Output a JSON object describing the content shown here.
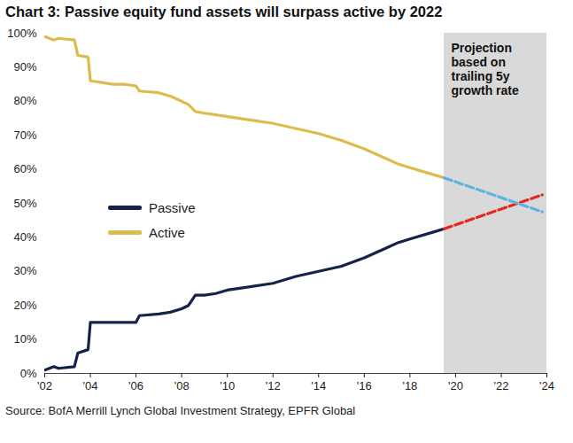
{
  "chart_data": {
    "type": "line",
    "title": "Chart 3: Passive equity fund assets will surpass active by 2022",
    "source": "Source: BofA Merrill Lynch Global Investment Strategy, EPFR Global",
    "x": [
      2002,
      2002.4,
      2002.6,
      2003.3,
      2003.45,
      2003.9,
      2004,
      2004.5,
      2005,
      2005.5,
      2006,
      2006.15,
      2007,
      2007.5,
      2008,
      2008.3,
      2008.6,
      2009,
      2009.5,
      2010,
      2011,
      2012,
      2013,
      2014,
      2015,
      2016,
      2017,
      2017.5,
      2018,
      2019,
      2019.5,
      2023.8
    ],
    "series": [
      {
        "name": "Passive",
        "color": "#15234a",
        "values": [
          1,
          2,
          1.5,
          2,
          6,
          7,
          15,
          15,
          15,
          15,
          15,
          17,
          17.5,
          18,
          19,
          20,
          23,
          23,
          23.5,
          24.5,
          25.5,
          26.5,
          28.5,
          30,
          31.5,
          34,
          37,
          38.5,
          39.5,
          41.5,
          42.5,
          null
        ],
        "projection": {
          "color": "#e8251f",
          "line_style": "dashed",
          "values": [
            null,
            null,
            null,
            null,
            null,
            null,
            null,
            null,
            null,
            null,
            null,
            null,
            null,
            null,
            null,
            null,
            null,
            null,
            null,
            null,
            null,
            null,
            null,
            null,
            null,
            null,
            null,
            null,
            null,
            null,
            42.5,
            52.5
          ]
        }
      },
      {
        "name": "Active",
        "color": "#dcbc4c",
        "values": [
          99,
          98,
          98.5,
          98,
          93.5,
          93,
          86,
          85.5,
          85,
          85,
          84.5,
          83,
          82.5,
          81.5,
          80,
          79,
          77,
          76.5,
          76,
          75.5,
          74.5,
          73.5,
          72,
          70.5,
          68.5,
          66,
          63,
          61.5,
          60.5,
          58.5,
          57.5,
          null
        ],
        "projection": {
          "color": "#5bb5e0",
          "line_style": "dashed",
          "values": [
            null,
            null,
            null,
            null,
            null,
            null,
            null,
            null,
            null,
            null,
            null,
            null,
            null,
            null,
            null,
            null,
            null,
            null,
            null,
            null,
            null,
            null,
            null,
            null,
            null,
            null,
            null,
            null,
            null,
            null,
            57.5,
            47.5
          ]
        }
      }
    ],
    "shaded_region": {
      "x": [
        2019.5,
        2024
      ],
      "color": "#d9d9d9",
      "label": "Projection\nbased on\ntrailing 5y\ngrowth rate"
    },
    "xlim": [
      2002,
      2024
    ],
    "xticks": [
      {
        "value": 2002,
        "label": "'02"
      },
      {
        "value": 2004,
        "label": "'04"
      },
      {
        "value": 2006,
        "label": "'06"
      },
      {
        "value": 2008,
        "label": "'08"
      },
      {
        "value": 2010,
        "label": "'10"
      },
      {
        "value": 2012,
        "label": "'12"
      },
      {
        "value": 2014,
        "label": "'14"
      },
      {
        "value": 2016,
        "label": "'16"
      },
      {
        "value": 2018,
        "label": "'18"
      },
      {
        "value": 2020,
        "label": "'20"
      },
      {
        "value": 2022,
        "label": "'22"
      },
      {
        "value": 2024,
        "label": "'24"
      }
    ],
    "ylim": [
      0,
      100
    ],
    "yticks": [
      {
        "value": 0,
        "label": "0%"
      },
      {
        "value": 10,
        "label": "10%"
      },
      {
        "value": 20,
        "label": "20%"
      },
      {
        "value": 30,
        "label": "30%"
      },
      {
        "value": 40,
        "label": "40%"
      },
      {
        "value": 50,
        "label": "50%"
      },
      {
        "value": 60,
        "label": "60%"
      },
      {
        "value": 70,
        "label": "70%"
      },
      {
        "value": 80,
        "label": "80%"
      },
      {
        "value": 90,
        "label": "90%"
      },
      {
        "value": 100,
        "label": "100%"
      }
    ],
    "grid": false,
    "legend": "left"
  }
}
